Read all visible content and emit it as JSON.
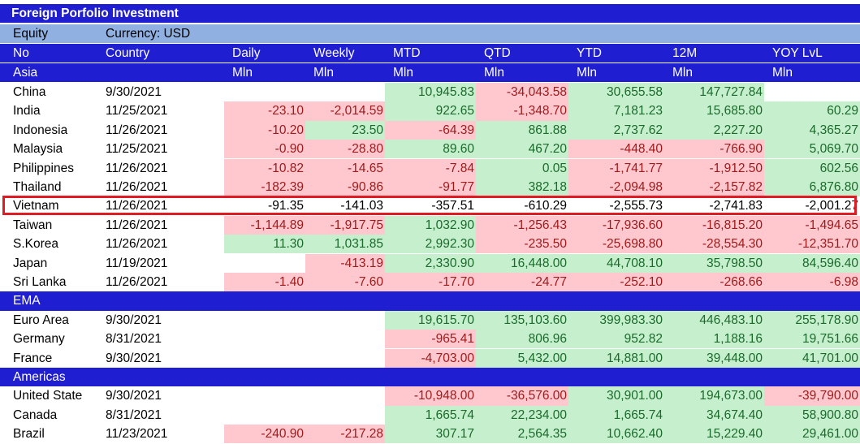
{
  "title": "Foreign Porfolio Investment",
  "equity": {
    "label": "Equity",
    "currency": "Currency: USD"
  },
  "header": {
    "top": [
      "No",
      "Country",
      "Daily",
      "Weekly",
      "MTD",
      "QTD",
      "YTD",
      "12M",
      "YOY LvL"
    ],
    "bottom": [
      "Asia",
      "",
      "Mln",
      "Mln",
      "Mln",
      "Mln",
      "Mln",
      "Mln",
      "Mln"
    ]
  },
  "colors": {
    "header_bg": "#1f1fd1",
    "equity_bg": "#8fb0e0",
    "positive_bg": "#c6efce",
    "positive_text": "#1a6b2a",
    "negative_bg": "#ffc7ce",
    "negative_text": "#9c1a1a",
    "highlight": "#e01b24"
  },
  "highlighted_row": "Vietnam",
  "rows": [
    {
      "type": "data",
      "country": "China",
      "date": "9/30/2021",
      "values": [
        "",
        "",
        "10,945.83",
        "-34,043.58",
        "30,655.58",
        "147,727.84",
        ""
      ]
    },
    {
      "type": "data",
      "country": "India",
      "date": "11/25/2021",
      "values": [
        "-23.10",
        "-2,014.59",
        "922.65",
        "-1,348.70",
        "7,181.23",
        "15,685.80",
        "60.29"
      ]
    },
    {
      "type": "data",
      "country": "Indonesia",
      "date": "11/26/2021",
      "values": [
        "-10.20",
        "23.50",
        "-64.39",
        "861.88",
        "2,737.62",
        "2,227.20",
        "4,365.27"
      ]
    },
    {
      "type": "data",
      "country": "Malaysia",
      "date": "11/25/2021",
      "values": [
        "-0.90",
        "-28.80",
        "89.60",
        "467.20",
        "-448.40",
        "-766.90",
        "5,069.70"
      ]
    },
    {
      "type": "data",
      "country": "Philippines",
      "date": "11/26/2021",
      "values": [
        "-10.82",
        "-14.65",
        "-7.84",
        "0.05",
        "-1,741.77",
        "-1,912.50",
        "602.56"
      ]
    },
    {
      "type": "data",
      "country": "Thailand",
      "date": "11/26/2021",
      "values": [
        "-182.39",
        "-90.86",
        "-91.77",
        "382.18",
        "-2,094.98",
        "-2,157.82",
        "6,876.80"
      ]
    },
    {
      "type": "data",
      "country": "Vietnam",
      "date": "11/26/2021",
      "values": [
        "-91.35",
        "-141.03",
        "-357.51",
        "-610.29",
        "-2,555.73",
        "-2,741.83",
        "-2,001.27"
      ],
      "plain": true
    },
    {
      "type": "data",
      "country": "Taiwan",
      "date": "11/26/2021",
      "values": [
        "-1,144.89",
        "-1,917.75",
        "1,032.90",
        "-1,256.43",
        "-17,936.60",
        "-16,815.20",
        "-1,494.65"
      ]
    },
    {
      "type": "data",
      "country": "S.Korea",
      "date": "11/26/2021",
      "values": [
        "11.30",
        "1,031.85",
        "2,992.30",
        "-235.50",
        "-25,698.80",
        "-28,554.30",
        "-12,351.70"
      ]
    },
    {
      "type": "data",
      "country": "Japan",
      "date": "11/19/2021",
      "values": [
        "",
        "-413.19",
        "2,330.90",
        "16,448.00",
        "44,708.10",
        "35,798.50",
        "84,596.40"
      ]
    },
    {
      "type": "data",
      "country": "Sri Lanka",
      "date": "11/26/2021",
      "values": [
        "-1.40",
        "-7.60",
        "-17.70",
        "-24.77",
        "-252.10",
        "-268.66",
        "-6.98"
      ]
    },
    {
      "type": "region",
      "label": "EMA"
    },
    {
      "type": "data",
      "country": "Euro Area",
      "date": "9/30/2021",
      "values": [
        "",
        "",
        "19,615.70",
        "135,103.60",
        "399,983.30",
        "446,483.10",
        "255,178.90"
      ]
    },
    {
      "type": "data",
      "country": "Germany",
      "date": "8/31/2021",
      "values": [
        "",
        "",
        "-965.41",
        "806.96",
        "952.82",
        "1,188.16",
        "19,751.66"
      ]
    },
    {
      "type": "data",
      "country": "France",
      "date": "9/30/2021",
      "values": [
        "",
        "",
        "-4,703.00",
        "5,432.00",
        "14,881.00",
        "39,448.00",
        "41,701.00"
      ]
    },
    {
      "type": "region",
      "label": "Americas"
    },
    {
      "type": "data",
      "country": "United State",
      "date": "9/30/2021",
      "values": [
        "",
        "",
        "-10,948.00",
        "-36,576.00",
        "30,901.00",
        "194,673.00",
        "-39,790.00"
      ]
    },
    {
      "type": "data",
      "country": "Canada",
      "date": "8/31/2021",
      "values": [
        "",
        "",
        "1,665.74",
        "22,234.00",
        "1,665.74",
        "34,674.40",
        "58,900.80"
      ]
    },
    {
      "type": "data",
      "country": "Brazil",
      "date": "11/23/2021",
      "values": [
        "-240.90",
        "-217.28",
        "307.17",
        "2,564.35",
        "10,662.40",
        "15,229.40",
        "29,461.00"
      ]
    }
  ]
}
